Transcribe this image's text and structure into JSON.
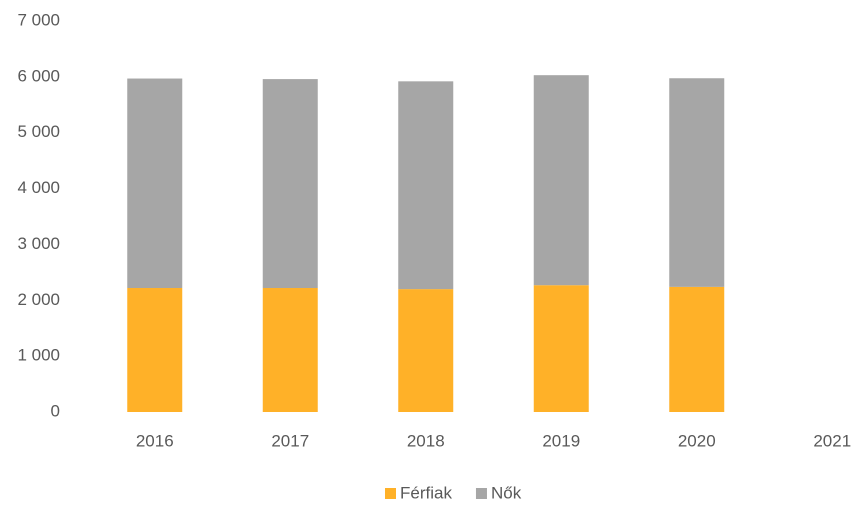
{
  "chart_data": {
    "type": "stacked_bar",
    "categories": [
      "2016",
      "2017",
      "2018",
      "2019",
      "2020",
      "2021"
    ],
    "series": [
      {
        "name": "Férfiak",
        "color": "#ffb128",
        "values": [
          2220,
          2220,
          2200,
          2270,
          2240,
          null
        ]
      },
      {
        "name": "Nők",
        "color": "#a6a6a6",
        "values": [
          3750,
          3740,
          3720,
          3760,
          3735,
          null
        ]
      }
    ],
    "ylim": [
      0,
      7000
    ],
    "yticks": [
      0,
      {
        "value": 1000,
        "label": "1 000"
      },
      {
        "value": 2000,
        "label": "2 000"
      },
      {
        "value": 3000,
        "label": "3 000"
      },
      {
        "value": 4000,
        "label": "4 000"
      },
      {
        "value": 5000,
        "label": "5 000"
      },
      {
        "value": 6000,
        "label": "6 000"
      },
      {
        "value": 7000,
        "label": "7 000"
      }
    ],
    "grid": false,
    "legend": "bottom"
  }
}
